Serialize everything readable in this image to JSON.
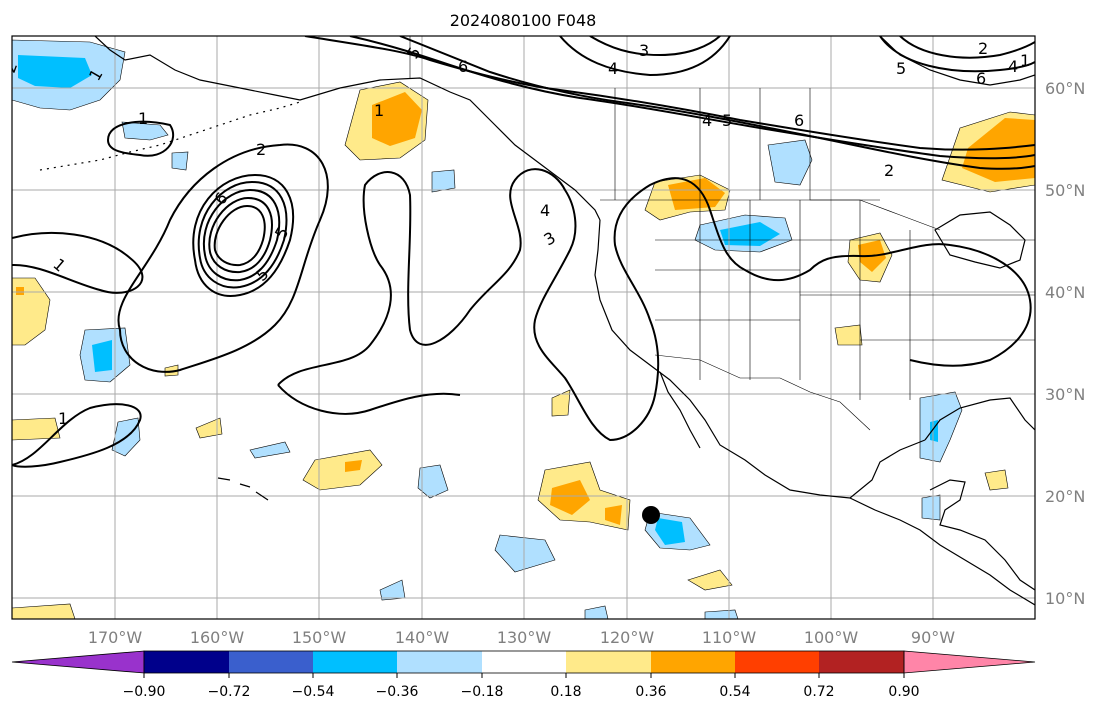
{
  "title": "2024080100 F048",
  "lat_labels": [
    "60°N",
    "50°N",
    "40°N",
    "30°N",
    "20°N",
    "10°N"
  ],
  "lon_labels": [
    "170°W",
    "160°W",
    "150°W",
    "140°W",
    "130°W",
    "120°W",
    "110°W",
    "100°W",
    "90°W"
  ],
  "colorbar": {
    "colors": [
      "#9932cc",
      "#00008b",
      "#3a5fcd",
      "#00bfff",
      "#b0e0ff",
      "#ffffff",
      "#ffea8a",
      "#ffa500",
      "#ff3f00",
      "#b22222",
      "#ff85a8"
    ],
    "tick_labels": [
      "−0.90",
      "−0.72",
      "−0.54",
      "−0.36",
      "−0.18",
      "0.18",
      "0.36",
      "0.54",
      "0.72",
      "0.90"
    ]
  },
  "contour_labels": [
    {
      "text": "2",
      "id": "c1"
    },
    {
      "text": "1",
      "id": "c2"
    },
    {
      "text": "1",
      "id": "c3"
    },
    {
      "text": "1",
      "id": "c4"
    },
    {
      "text": "2",
      "id": "c5"
    },
    {
      "text": "6",
      "id": "c6"
    },
    {
      "text": "5",
      "id": "c7"
    },
    {
      "text": "5",
      "id": "c8"
    },
    {
      "text": "1",
      "id": "c9"
    },
    {
      "text": "1",
      "id": "c10"
    },
    {
      "text": "5",
      "id": "c11"
    },
    {
      "text": "6",
      "id": "c12"
    },
    {
      "text": "3",
      "id": "c13"
    },
    {
      "text": "4",
      "id": "c14"
    },
    {
      "text": "4",
      "id": "c15"
    },
    {
      "text": "5",
      "id": "c16"
    },
    {
      "text": "6",
      "id": "c17"
    },
    {
      "text": "4",
      "id": "c18"
    },
    {
      "text": "3",
      "id": "c19"
    },
    {
      "text": "2",
      "id": "c20"
    },
    {
      "text": "5",
      "id": "c21"
    },
    {
      "text": "2",
      "id": "c22"
    },
    {
      "text": "4",
      "id": "c23"
    },
    {
      "text": "6",
      "id": "c24"
    },
    {
      "text": "1",
      "id": "c25"
    }
  ],
  "colors": {
    "light_blue": "#b0e0ff",
    "blue": "#00bfff",
    "light_yellow": "#ffea8a",
    "orange": "#ffa500",
    "grid": "#aaaaaa",
    "axis_label": "#808080"
  },
  "marker": "storm-center-dot"
}
